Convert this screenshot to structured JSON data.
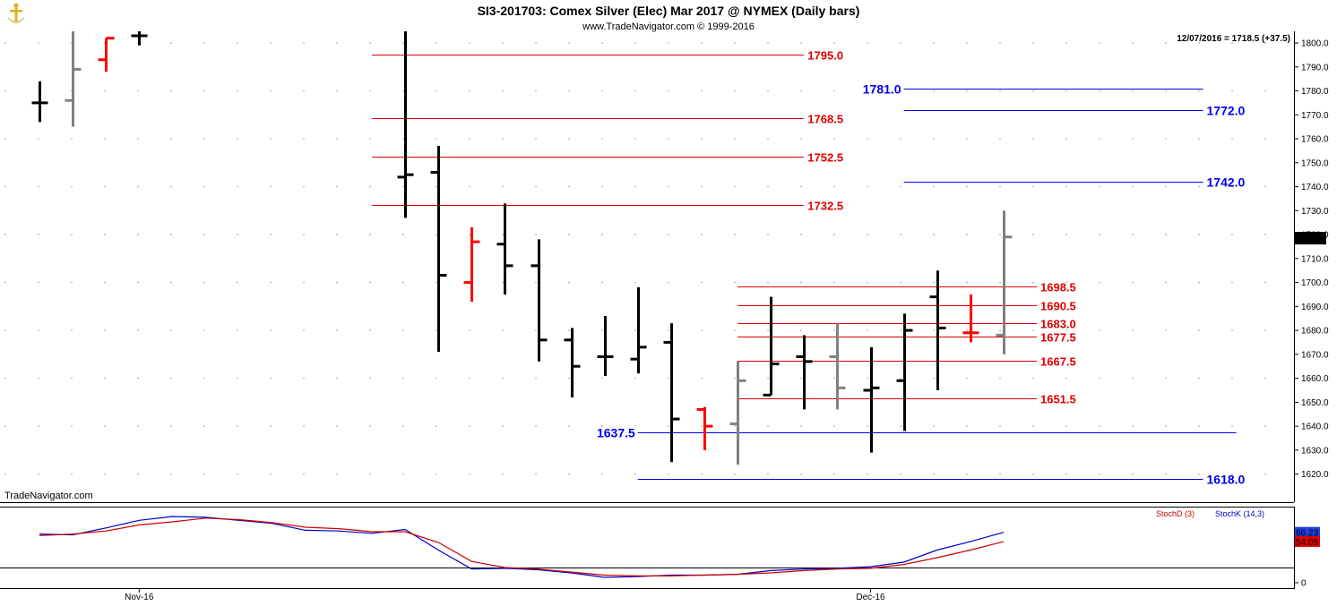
{
  "header": {
    "title": "SI3-201703:  Comex Silver (Elec) Mar 2017 @ NYMEX  (Daily bars)",
    "subtitle": "www.TradeNavigator.com © 1999-2016",
    "last_info": "12/07/2016 = 1718.5 (+37.5)",
    "watermark": "TradeNavigator.com",
    "logo_icon": "anchor-icon"
  },
  "colors": {
    "up": "#000000",
    "down": "#ff0000",
    "unchanged": "#808080",
    "resistance": "#e00000",
    "support": "#0000ee",
    "stoch_d": "#cc0000",
    "stoch_k": "#0000cc",
    "grid_dot": "#b0b0b0",
    "axis": "#000000"
  },
  "chart_data": [
    {
      "type": "ohlc",
      "title": "SI3-201703:  Comex Silver (Elec) Mar 2017 @ NYMEX  (Daily bars)",
      "y_ticks": [
        "1620.0",
        "1630.0",
        "1640.0",
        "1650.0",
        "1660.0",
        "1670.0",
        "1680.0",
        "1690.0",
        "1700.0",
        "1710.0",
        "1720.0",
        "1730.0",
        "1740.0",
        "1750.0",
        "1760.0",
        "1770.0",
        "1780.0",
        "1790.0",
        "1800.0"
      ],
      "ylim": [
        1612,
        1805
      ],
      "x_tick_labels": [
        {
          "label": "Nov-16",
          "bar": 3
        },
        {
          "label": "Dec-16",
          "bar": 25
        }
      ],
      "last_price_label": "1718.5",
      "bars": [
        {
          "o": 1775,
          "h": 1784,
          "l": 1767,
          "c": 1775,
          "col": "up"
        },
        {
          "o": 1776,
          "h": 1806,
          "l": 1765,
          "c": 1789,
          "col": "unchanged"
        },
        {
          "o": 1793,
          "h": 1802,
          "l": 1788,
          "c": 1802,
          "col": "down"
        },
        {
          "o": 1803,
          "h": 1806,
          "l": 1799,
          "c": 1803,
          "col": "up"
        },
        null,
        null,
        null,
        null,
        null,
        null,
        null,
        {
          "o": 1744,
          "h": 1805,
          "l": 1727,
          "c": 1745,
          "col": "up"
        },
        {
          "o": 1746,
          "h": 1757,
          "l": 1671,
          "c": 1703,
          "col": "up"
        },
        {
          "o": 1700,
          "h": 1723,
          "l": 1692,
          "c": 1717,
          "col": "down"
        },
        {
          "o": 1716,
          "h": 1733,
          "l": 1695,
          "c": 1707,
          "col": "up"
        },
        {
          "o": 1707,
          "h": 1718,
          "l": 1667,
          "c": 1676,
          "col": "up"
        },
        {
          "o": 1676,
          "h": 1681,
          "l": 1652,
          "c": 1665,
          "col": "up"
        },
        {
          "o": 1669,
          "h": 1686,
          "l": 1661,
          "c": 1669,
          "col": "up"
        },
        {
          "o": 1668,
          "h": 1698,
          "l": 1662,
          "c": 1673,
          "col": "up"
        },
        {
          "o": 1675,
          "h": 1683,
          "l": 1625,
          "c": 1643,
          "col": "up"
        },
        {
          "o": 1647,
          "h": 1648,
          "l": 1630,
          "c": 1640,
          "col": "down"
        },
        {
          "o": 1641,
          "h": 1667,
          "l": 1624,
          "c": 1659,
          "col": "unchanged"
        },
        {
          "o": 1653,
          "h": 1694,
          "l": 1653,
          "c": 1666,
          "col": "up"
        },
        {
          "o": 1669,
          "h": 1678,
          "l": 1647,
          "c": 1667,
          "col": "up"
        },
        {
          "o": 1669,
          "h": 1683,
          "l": 1647,
          "c": 1656,
          "col": "unchanged"
        },
        {
          "o": 1655,
          "h": 1673,
          "l": 1629,
          "c": 1656,
          "col": "up"
        },
        {
          "o": 1659,
          "h": 1687,
          "l": 1638,
          "c": 1680,
          "col": "up"
        },
        {
          "o": 1694,
          "h": 1705,
          "l": 1655,
          "c": 1681,
          "col": "up"
        },
        {
          "o": 1679,
          "h": 1695,
          "l": 1675,
          "c": 1679,
          "col": "down"
        },
        {
          "o": 1678,
          "h": 1730,
          "l": 1670,
          "c": 1719,
          "col": "unchanged"
        }
      ],
      "levels": [
        {
          "value": 1795.0,
          "label": "1795.0",
          "color": "resistance",
          "from": 10,
          "to": 23,
          "label_at": "end"
        },
        {
          "value": 1781.0,
          "label": "1781.0",
          "color": "support",
          "from": 26,
          "to": 35,
          "label_at": "start"
        },
        {
          "value": 1772.0,
          "label": "1772.0",
          "color": "support",
          "from": 26,
          "to": 35,
          "label_at": "end"
        },
        {
          "value": 1768.5,
          "label": "1768.5",
          "color": "resistance",
          "from": 10,
          "to": 23,
          "label_at": "end"
        },
        {
          "value": 1752.5,
          "label": "1752.5",
          "color": "resistance",
          "from": 10,
          "to": 23,
          "label_at": "end"
        },
        {
          "value": 1742.0,
          "label": "1742.0",
          "color": "support",
          "from": 26,
          "to": 35,
          "label_at": "end"
        },
        {
          "value": 1732.5,
          "label": "1732.5",
          "color": "resistance",
          "from": 10,
          "to": 23,
          "label_at": "end"
        },
        {
          "value": 1698.5,
          "label": "1698.5",
          "color": "resistance",
          "from": 21,
          "to": 30,
          "label_at": "end"
        },
        {
          "value": 1690.5,
          "label": "1690.5",
          "color": "resistance",
          "from": 21,
          "to": 30,
          "label_at": "end"
        },
        {
          "value": 1683.0,
          "label": "1683.0",
          "color": "resistance",
          "from": 21,
          "to": 30,
          "label_at": "end"
        },
        {
          "value": 1677.5,
          "label": "1677.5",
          "color": "resistance",
          "from": 21,
          "to": 30,
          "label_at": "end"
        },
        {
          "value": 1667.5,
          "label": "1667.5",
          "color": "resistance",
          "from": 21,
          "to": 30,
          "label_at": "end"
        },
        {
          "value": 1651.5,
          "label": "1651.5",
          "color": "resistance",
          "from": 21,
          "to": 30,
          "label_at": "end"
        },
        {
          "value": 1637.5,
          "label": "1637.5",
          "color": "support",
          "from": 18,
          "to": 36,
          "label_at": "start"
        },
        {
          "value": 1618.0,
          "label": "1618.0",
          "color": "support",
          "from": 18,
          "to": 35,
          "label_at": "end"
        }
      ]
    },
    {
      "type": "line",
      "legend": [
        {
          "name": "StochD (3)",
          "color": "stoch_d"
        },
        {
          "name": "StochK (14,3)",
          "color": "stoch_k"
        }
      ],
      "ylim": [
        0,
        100
      ],
      "y_ticks": [
        "0"
      ],
      "reference_line": 20,
      "value_labels": [
        "66.23",
        "54.05"
      ],
      "x_bar": [
        0,
        1,
        2,
        3,
        4,
        5,
        6,
        7,
        8,
        9,
        10,
        11,
        12,
        13,
        14,
        15,
        16,
        17,
        18,
        19,
        20,
        21,
        22,
        23,
        24,
        25,
        26,
        27,
        28,
        29
      ],
      "series": [
        {
          "name": "StochK (14,3)",
          "color": "stoch_k",
          "values": [
            64,
            63,
            72,
            82,
            87,
            86,
            82,
            78,
            69,
            68,
            65,
            70,
            43,
            18,
            19,
            17,
            13,
            7,
            8,
            10,
            10,
            11,
            16,
            18,
            19,
            21,
            27,
            43,
            54,
            66.23
          ]
        },
        {
          "name": "StochD (3)",
          "color": "stoch_d",
          "values": [
            62,
            64,
            68,
            76,
            80,
            85,
            83,
            79,
            73,
            71,
            67,
            67,
            53,
            28,
            20,
            18,
            14,
            10,
            9,
            9,
            10,
            11,
            13,
            16,
            18,
            19,
            24,
            33,
            43,
            54.05
          ]
        }
      ]
    }
  ]
}
